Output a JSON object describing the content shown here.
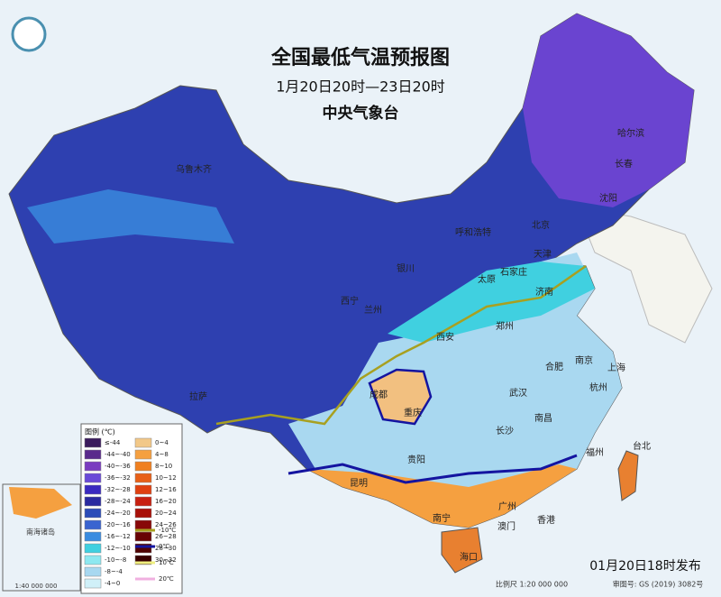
{
  "header": {
    "title": "全国最低气温预报图",
    "period": "1月20日20时—23日20时",
    "issuer": "中央气象台"
  },
  "legend": {
    "title": "图例 (℃)",
    "fills": [
      {
        "label": "≤-44",
        "color": "#3a1a5c"
      },
      {
        "label": "-44~-40",
        "color": "#5a2a8c"
      },
      {
        "label": "-40~-36",
        "color": "#7a3cc0"
      },
      {
        "label": "-36~-32",
        "color": "#6a4ad8"
      },
      {
        "label": "-32~-28",
        "color": "#3a2ac0"
      },
      {
        "label": "-28~-24",
        "color": "#2a2aa0"
      },
      {
        "label": "-24~-20",
        "color": "#2c4cb8"
      },
      {
        "label": "-20~-16",
        "color": "#3a64d0"
      },
      {
        "label": "-16~-12",
        "color": "#3a8ce0"
      },
      {
        "label": "-12~-10",
        "color": "#40d0e0"
      },
      {
        "label": "-10~-8",
        "color": "#8ee8f0"
      },
      {
        "label": "-8~-4",
        "color": "#a8d8f0"
      },
      {
        "label": "-4~0",
        "color": "#d0f0f8"
      },
      {
        "label": "0~4",
        "color": "#f2c888"
      },
      {
        "label": "4~8",
        "color": "#f5a040"
      },
      {
        "label": "8~10",
        "color": "#f08020"
      },
      {
        "label": "10~12",
        "color": "#e86018"
      },
      {
        "label": "12~16",
        "color": "#e04010"
      },
      {
        "label": "16~20",
        "color": "#c82010"
      },
      {
        "label": "20~24",
        "color": "#a81008"
      },
      {
        "label": "24~26",
        "color": "#880808"
      },
      {
        "label": "26~28",
        "color": "#680404"
      },
      {
        "label": "28~30",
        "color": "#500202"
      },
      {
        "label": "30~32",
        "color": "#380000"
      }
    ],
    "lines": [
      {
        "label": "-10℃",
        "color": "#a8a020"
      },
      {
        "label": "0℃",
        "color": "#1414a0"
      },
      {
        "label": "10℃",
        "color": "#f0f080"
      },
      {
        "label": "20℃",
        "color": "#f0b0e0"
      }
    ]
  },
  "cities": [
    "乌鲁木齐",
    "哈尔滨",
    "长春",
    "沈阳",
    "北京",
    "天津",
    "呼和浩特",
    "石家庄",
    "太原",
    "济南",
    "银川",
    "西宁",
    "兰州",
    "郑州",
    "西安",
    "合肥",
    "南京",
    "上海",
    "成都",
    "重庆",
    "武汉",
    "杭州",
    "长沙",
    "南昌",
    "贵阳",
    "福州",
    "台北",
    "昆明",
    "广州",
    "南宁",
    "澳门",
    "香港",
    "海口",
    "拉萨"
  ],
  "inset": {
    "label": "南海诸岛",
    "scale": "1:40 000 000"
  },
  "footer": {
    "scale": "比例尺 1:20 000 000",
    "review": "审图号: GS (2019) 3082号",
    "issued": "01月20日18时发布"
  }
}
